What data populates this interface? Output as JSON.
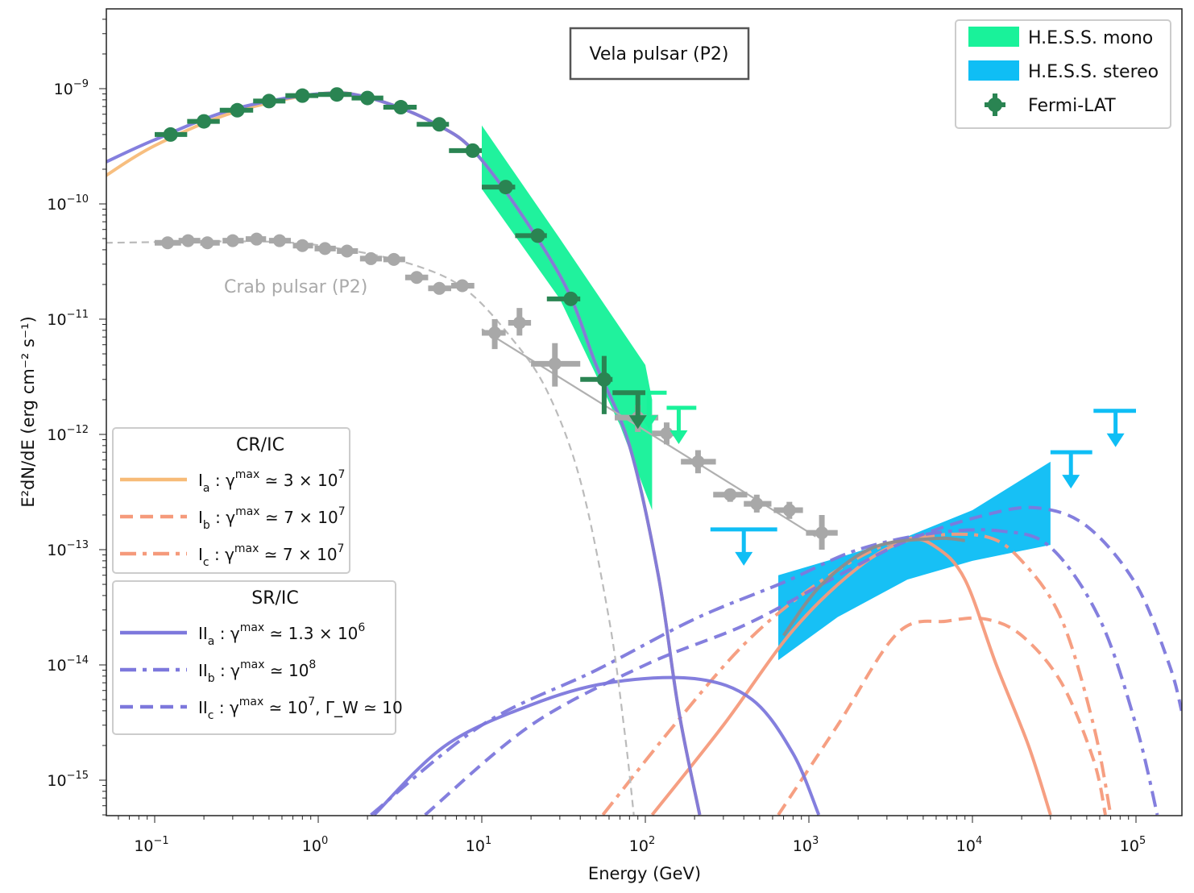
{
  "chart_data": {
    "type": "scatter",
    "title": "Vela pulsar (P2)",
    "xlabel": "Energy (GeV)",
    "ylabel": "E²dN/dE (erg cm⁻² s⁻¹)",
    "xscale": "log",
    "yscale": "log",
    "xlim": [
      0.05,
      190000
    ],
    "ylim": [
      5e-16,
      5e-09
    ],
    "xticks": [
      {
        "value": 0.1,
        "base": "10",
        "exp": "−1"
      },
      {
        "value": 1,
        "base": "10",
        "exp": "0"
      },
      {
        "value": 10,
        "base": "10",
        "exp": "1"
      },
      {
        "value": 100,
        "base": "10",
        "exp": "2"
      },
      {
        "value": 1000,
        "base": "10",
        "exp": "3"
      },
      {
        "value": 10000,
        "base": "10",
        "exp": "4"
      },
      {
        "value": 100000,
        "base": "10",
        "exp": "5"
      }
    ],
    "yticks": [
      {
        "value": 1e-09,
        "base": "10",
        "exp": "−9"
      },
      {
        "value": 1e-10,
        "base": "10",
        "exp": "−10"
      },
      {
        "value": 1e-11,
        "base": "10",
        "exp": "−11"
      },
      {
        "value": 1e-12,
        "base": "10",
        "exp": "−12"
      },
      {
        "value": 1e-13,
        "base": "10",
        "exp": "−13"
      },
      {
        "value": 1e-14,
        "base": "10",
        "exp": "−14"
      },
      {
        "value": 1e-15,
        "base": "10",
        "exp": "−15"
      }
    ],
    "grid": false,
    "annotation": "Crab pulsar (P2)",
    "legend_top_right": [
      {
        "label": "H.E.S.S. mono",
        "color": "#19f29a",
        "kind": "patch"
      },
      {
        "label": "H.E.S.S. stereo",
        "color": "#0fbef5",
        "kind": "patch"
      },
      {
        "label": "Fermi-LAT",
        "color": "#2a8452",
        "kind": "errorbar"
      }
    ],
    "legend_cr_ic": {
      "title": "CR/IC",
      "entries": [
        {
          "id": "Ia",
          "main": "I",
          "sub": "a",
          "text": ": γ",
          "sup": "max",
          "rest": "≃ 3 × 10",
          "rest_sup": "7",
          "tail": "",
          "color": "#f7bb78",
          "dash": "solid"
        },
        {
          "id": "Ib",
          "main": "I",
          "sub": "b",
          "text": ": γ",
          "sup": "max",
          "rest": "≃ 7 × 10",
          "rest_sup": "7",
          "tail": "",
          "color": "#f59a7b",
          "dash": "dashed"
        },
        {
          "id": "Ic",
          "main": "I",
          "sub": "c",
          "text": ": γ",
          "sup": "max",
          "rest": "≃ 7 × 10",
          "rest_sup": "7",
          "tail": "",
          "color": "#f59a7b",
          "dash": "dashdot"
        }
      ]
    },
    "legend_sr_ic": {
      "title": "SR/IC",
      "entries": [
        {
          "id": "IIa",
          "main": "II",
          "sub": "a",
          "text": ": γ",
          "sup": "max",
          "rest": "≃ 1.3 × 10",
          "rest_sup": "6",
          "tail": "",
          "color": "#7d78dc",
          "dash": "solid"
        },
        {
          "id": "IIb",
          "main": "II",
          "sub": "b",
          "text": ": γ",
          "sup": "max",
          "rest": "≃ 10",
          "rest_sup": "8",
          "tail": "",
          "color": "#7d78dc",
          "dash": "dashdot"
        },
        {
          "id": "IIc",
          "main": "II",
          "sub": "c",
          "text": ": γ",
          "sup": "max",
          "rest": "≃ 10",
          "rest_sup": "7",
          "tail": ", Γ_W ≃ 10",
          "color": "#7d78dc",
          "dash": "dashed"
        }
      ]
    },
    "series": [
      {
        "name": "Fermi-LAT (Vela P2)",
        "type": "errorbar",
        "color": "#2a8452",
        "points": [
          {
            "x": 0.125,
            "y": 4e-10,
            "xlo": 0.1,
            "xhi": 0.158
          },
          {
            "x": 0.2,
            "y": 5.2e-10,
            "xlo": 0.158,
            "xhi": 0.25
          },
          {
            "x": 0.32,
            "y": 6.5e-10,
            "xlo": 0.25,
            "xhi": 0.4
          },
          {
            "x": 0.5,
            "y": 7.8e-10,
            "xlo": 0.4,
            "xhi": 0.63
          },
          {
            "x": 0.8,
            "y": 8.7e-10,
            "xlo": 0.63,
            "xhi": 1.0
          },
          {
            "x": 1.3,
            "y": 8.9e-10,
            "xlo": 1.0,
            "xhi": 1.6
          },
          {
            "x": 2.0,
            "y": 8.3e-10,
            "xlo": 1.6,
            "xhi": 2.5
          },
          {
            "x": 3.2,
            "y": 6.9e-10,
            "xlo": 2.5,
            "xhi": 4.0
          },
          {
            "x": 5.5,
            "y": 4.9e-10,
            "xlo": 4.0,
            "xhi": 6.3
          },
          {
            "x": 8.8,
            "y": 2.9e-10,
            "xlo": 6.3,
            "xhi": 10.0
          },
          {
            "x": 14,
            "y": 1.4e-10,
            "xlo": 10,
            "xhi": 16
          },
          {
            "x": 22,
            "y": 5.3e-11,
            "xlo": 16,
            "xhi": 25
          },
          {
            "x": 35,
            "y": 1.5e-11,
            "xlo": 25,
            "xhi": 40,
            "ylo": 1.5e-11,
            "yhi": 1.5e-11
          },
          {
            "x": 56,
            "y": 3e-12,
            "xlo": 40,
            "xhi": 63,
            "ylo": 1.5e-12,
            "yhi": 4.8e-12
          }
        ],
        "upper_limits": [
          {
            "x": 90,
            "y": 2.3e-12,
            "xlo": 63,
            "xhi": 100
          }
        ]
      },
      {
        "name": "Crab pulsar (P2)",
        "type": "errorbar",
        "color": "#a8a8a8",
        "points": [
          {
            "x": 0.12,
            "y": 4.6e-11,
            "xlo": 0.1,
            "xhi": 0.145
          },
          {
            "x": 0.16,
            "y": 4.8e-11,
            "xlo": 0.14,
            "xhi": 0.19
          },
          {
            "x": 0.21,
            "y": 4.6e-11,
            "xlo": 0.19,
            "xhi": 0.25
          },
          {
            "x": 0.3,
            "y": 4.8e-11,
            "xlo": 0.26,
            "xhi": 0.35
          },
          {
            "x": 0.42,
            "y": 4.95e-11,
            "xlo": 0.36,
            "xhi": 0.48
          },
          {
            "x": 0.58,
            "y": 4.8e-11,
            "xlo": 0.5,
            "xhi": 0.68
          },
          {
            "x": 0.8,
            "y": 4.35e-11,
            "xlo": 0.7,
            "xhi": 0.93
          },
          {
            "x": 1.1,
            "y": 4.1e-11,
            "xlo": 0.95,
            "xhi": 1.28
          },
          {
            "x": 1.5,
            "y": 3.9e-11,
            "xlo": 1.3,
            "xhi": 1.75
          },
          {
            "x": 2.1,
            "y": 3.35e-11,
            "xlo": 1.8,
            "xhi": 2.45
          },
          {
            "x": 2.9,
            "y": 3.3e-11,
            "xlo": 2.5,
            "xhi": 3.4
          },
          {
            "x": 4.0,
            "y": 2.3e-11,
            "xlo": 3.4,
            "xhi": 4.7
          },
          {
            "x": 5.5,
            "y": 1.85e-11,
            "xlo": 4.7,
            "xhi": 6.5
          },
          {
            "x": 7.6,
            "y": 1.95e-11,
            "xlo": 6.5,
            "xhi": 9.0
          },
          {
            "x": 12,
            "y": 7.6e-12,
            "xlo": 10,
            "xhi": 14,
            "ylo": 5.5e-12,
            "yhi": 1e-11
          },
          {
            "x": 17,
            "y": 9.3e-12,
            "xlo": 14.5,
            "xhi": 20,
            "ylo": 7.2e-12,
            "yhi": 1.25e-11
          },
          {
            "x": 28,
            "y": 4.1e-12,
            "xlo": 20,
            "xhi": 40,
            "ylo": 2.6e-12,
            "yhi": 6.2e-12
          },
          {
            "x": 90,
            "y": 1.4e-12,
            "xlo": 65,
            "xhi": 120,
            "ylo": 1.05e-12,
            "yhi": 1.8e-12
          },
          {
            "x": 135,
            "y": 1.02e-12,
            "xlo": 110,
            "xhi": 170,
            "ylo": 8.2e-13,
            "yhi": 1.27e-12
          },
          {
            "x": 210,
            "y": 5.8e-13,
            "xlo": 165,
            "xhi": 270,
            "ylo": 4.6e-13,
            "yhi": 7.3e-13
          },
          {
            "x": 330,
            "y": 3e-13,
            "xlo": 260,
            "xhi": 420,
            "ylo": 2.6e-13
          },
          {
            "x": 480,
            "y": 2.5e-13,
            "xlo": 400,
            "xhi": 590,
            "ylo": 2.1e-13,
            "yhi": 3e-13
          },
          {
            "x": 760,
            "y": 2.2e-13,
            "xlo": 610,
            "xhi": 920,
            "ylo": 1.85e-13,
            "yhi": 2.6e-13
          },
          {
            "x": 1200,
            "y": 1.4e-13,
            "xlo": 960,
            "xhi": 1500,
            "ylo": 1e-13,
            "yhi": 2e-13
          }
        ],
        "fit_dashed": [
          [
            0.05,
            4.6e-11
          ],
          [
            0.5,
            4.7e-11
          ],
          [
            1.5,
            4e-11
          ],
          [
            4,
            2.9e-11
          ],
          [
            8,
            1.8e-11
          ],
          [
            15,
            7e-12
          ],
          [
            25,
            2.4e-12
          ],
          [
            40,
            4e-13
          ],
          [
            60,
            2.5e-14
          ],
          [
            75,
            2.5e-15
          ],
          [
            85,
            5e-16
          ]
        ],
        "fit_powerlaw": [
          [
            10,
            8.2e-12
          ],
          [
            1100,
            1.3e-13
          ]
        ]
      },
      {
        "name": "H.E.S.S. mono",
        "type": "band",
        "color": "#19f29a",
        "upper": [
          [
            10,
            4.8e-10
          ],
          [
            30,
            5e-11
          ],
          [
            100,
            4e-12
          ],
          [
            110,
            2e-12
          ]
        ],
        "lower": [
          [
            10,
            1.35e-10
          ],
          [
            30,
            1.5e-11
          ],
          [
            70,
            1.2e-12
          ],
          [
            110,
            2.2e-13
          ]
        ],
        "upper_limits": [
          {
            "x": 105,
            "y": 2.3e-12,
            "xlo": 70,
            "xhi": 135
          },
          {
            "x": 160,
            "y": 1.7e-12,
            "xlo": 135,
            "xhi": 205
          }
        ]
      },
      {
        "name": "H.E.S.S. stereo",
        "type": "band",
        "color": "#0fbef5",
        "upper": [
          [
            650,
            6e-14
          ],
          [
            1500,
            8.5e-14
          ],
          [
            4000,
            1.3e-13
          ],
          [
            10000,
            2.2e-13
          ],
          [
            30000,
            5.8e-13
          ]
        ],
        "lower": [
          [
            650,
            1.1e-14
          ],
          [
            1500,
            2.6e-14
          ],
          [
            4000,
            5.5e-14
          ],
          [
            10000,
            8e-14
          ],
          [
            30000,
            1.1e-13
          ]
        ],
        "upper_limits": [
          {
            "x": 400,
            "y": 1.5e-13,
            "xlo": 250,
            "xhi": 640
          },
          {
            "x": 40000,
            "y": 7e-13,
            "xlo": 30000,
            "xhi": 54000
          },
          {
            "x": 75000,
            "y": 1.6e-12,
            "xlo": 55000,
            "xhi": 100000
          }
        ]
      },
      {
        "name": "I_a",
        "type": "line",
        "color": "#f7bb78",
        "dash": "solid",
        "points": [
          [
            0.05,
            1.75e-10
          ],
          [
            0.1,
            3.2e-10
          ],
          [
            0.3,
            6.2e-10
          ],
          [
            1,
            9e-10
          ],
          [
            2,
            8.4e-10
          ],
          [
            5,
            5.1e-10
          ],
          [
            10,
            2.4e-10
          ],
          [
            30,
            2.4e-11
          ],
          [
            50,
            4e-12
          ],
          [
            80,
            8e-13
          ],
          [
            120,
            6e-14
          ],
          [
            160,
            4e-15
          ],
          [
            215,
            5e-16
          ]
        ]
      },
      {
        "name": "I_b",
        "type": "line",
        "color": "#f59a7b",
        "dash": "dashed",
        "points": [
          [
            650,
            5e-16
          ],
          [
            1500,
            3e-15
          ],
          [
            3500,
            1.9e-14
          ],
          [
            7000,
            2.4e-14
          ],
          [
            12000,
            2.5e-14
          ],
          [
            20000,
            1.8e-14
          ],
          [
            35000,
            7e-15
          ],
          [
            55000,
            1.5e-15
          ],
          [
            65000,
            5e-16
          ]
        ]
      },
      {
        "name": "I_c",
        "type": "line",
        "color": "#f59a7b",
        "dash": "dashdot",
        "points": [
          [
            55,
            5e-16
          ],
          [
            150,
            3e-15
          ],
          [
            400,
            1.5e-14
          ],
          [
            1000,
            4.5e-14
          ],
          [
            2500,
            1e-13
          ],
          [
            5000,
            1.3e-13
          ],
          [
            12000,
            1.3e-13
          ],
          [
            20000,
            8e-14
          ],
          [
            35000,
            2.5e-14
          ],
          [
            55000,
            3e-15
          ],
          [
            70000,
            5e-16
          ]
        ]
      },
      {
        "name": "I_c (solid, CR/IC high-energy)",
        "type": "line",
        "color": "#f59a7b",
        "dash": "solid",
        "points": [
          [
            110,
            5e-16
          ],
          [
            300,
            3e-15
          ],
          [
            800,
            2e-14
          ],
          [
            2000,
            7e-14
          ],
          [
            4000,
            1.2e-13
          ],
          [
            6000,
            1.05e-13
          ],
          [
            9000,
            5.5e-14
          ],
          [
            14000,
            1e-14
          ],
          [
            22000,
            2e-15
          ],
          [
            30000,
            5e-16
          ]
        ]
      },
      {
        "name": "II_a",
        "type": "line",
        "color": "#7d78dc",
        "dash": "solid",
        "points": [
          [
            0.05,
            2.3e-10
          ],
          [
            0.1,
            3.6e-10
          ],
          [
            0.3,
            6.6e-10
          ],
          [
            1,
            9e-10
          ],
          [
            2,
            8.4e-10
          ],
          [
            5,
            5.1e-10
          ],
          [
            10,
            2.4e-10
          ],
          [
            30,
            2.4e-11
          ],
          [
            50,
            4e-12
          ],
          [
            80,
            8e-13
          ],
          [
            120,
            6e-14
          ],
          [
            160,
            4e-15
          ],
          [
            215,
            5e-16
          ]
        ]
      },
      {
        "name": "II_a (IC component)",
        "type": "line",
        "color": "#7d78dc",
        "dash": "solid",
        "points": [
          [
            2.2,
            5e-16
          ],
          [
            6,
            2e-15
          ],
          [
            20,
            4.5e-15
          ],
          [
            60,
            7e-15
          ],
          [
            200,
            7.6e-15
          ],
          [
            450,
            5e-15
          ],
          [
            800,
            1.7e-15
          ],
          [
            1150,
            5e-16
          ]
        ]
      },
      {
        "name": "II_b",
        "type": "line",
        "color": "#7d78dc",
        "dash": "dashdot",
        "points": [
          [
            2.1,
            5e-16
          ],
          [
            10,
            3e-15
          ],
          [
            50,
            9e-15
          ],
          [
            200,
            2.5e-14
          ],
          [
            700,
            5.2e-14
          ],
          [
            2000,
            1e-13
          ],
          [
            6000,
            1.4e-13
          ],
          [
            15000,
            1.45e-13
          ],
          [
            30000,
            1.05e-13
          ],
          [
            60000,
            2.5e-14
          ],
          [
            100000,
            3e-15
          ],
          [
            135000,
            5e-16
          ]
        ]
      },
      {
        "name": "II_c",
        "type": "line",
        "color": "#7d78dc",
        "dash": "dashed",
        "points": [
          [
            4.5,
            5e-16
          ],
          [
            20,
            3e-15
          ],
          [
            100,
            1e-14
          ],
          [
            400,
            2.2e-14
          ],
          [
            1200,
            5e-14
          ],
          [
            4000,
            1.2e-13
          ],
          [
            12000,
            2e-13
          ],
          [
            25000,
            2.3e-13
          ],
          [
            50000,
            1.6e-13
          ],
          [
            100000,
            5e-14
          ],
          [
            160000,
            1e-14
          ],
          [
            190000,
            4e-15
          ]
        ]
      },
      {
        "name": "gray model (stereo fit)",
        "type": "line",
        "color": "#8c8c8c",
        "dash": "solid",
        "points": [
          [
            700,
            1.8e-14
          ],
          [
            1200,
            5e-14
          ],
          [
            2500,
            1.05e-13
          ],
          [
            6000,
            1.25e-13
          ],
          [
            9000,
            1.2e-13
          ]
        ]
      }
    ]
  }
}
